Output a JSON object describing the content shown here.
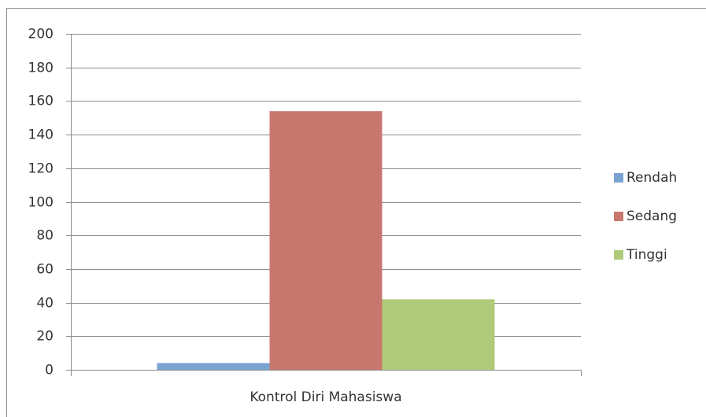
{
  "chart_data": {
    "type": "bar",
    "categories": [
      "Kontrol Diri Mahasiswa"
    ],
    "series": [
      {
        "name": "Rendah",
        "color": "#7aa3d1",
        "values": [
          4
        ]
      },
      {
        "name": "Sedang",
        "color": "#c8776f",
        "values": [
          154
        ]
      },
      {
        "name": "Tinggi",
        "color": "#afca79",
        "values": [
          42
        ]
      }
    ],
    "ylim": [
      0,
      200
    ],
    "yticks": [
      0,
      20,
      40,
      60,
      80,
      100,
      120,
      140,
      160,
      180,
      200
    ],
    "grid": true,
    "legend": "right"
  }
}
